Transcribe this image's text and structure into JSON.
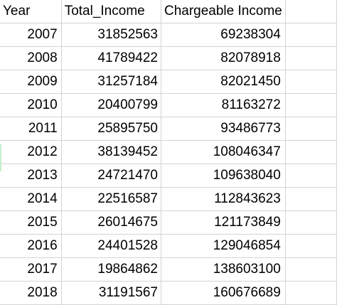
{
  "columns": {
    "year": "Year",
    "total_income": "Total_Income",
    "chargeable_income": "Chargeable Income"
  },
  "rows": [
    {
      "year": "2007",
      "total_income": "31852563",
      "chargeable_income": "69238304"
    },
    {
      "year": "2008",
      "total_income": "41789422",
      "chargeable_income": "82078918"
    },
    {
      "year": "2009",
      "total_income": "31257184",
      "chargeable_income": "82021450"
    },
    {
      "year": "2010",
      "total_income": "20400799",
      "chargeable_income": "81163272"
    },
    {
      "year": "2011",
      "total_income": "25895750",
      "chargeable_income": "93486773"
    },
    {
      "year": "2012",
      "total_income": "38139452",
      "chargeable_income": "108046347"
    },
    {
      "year": "2013",
      "total_income": "24721470",
      "chargeable_income": "109638040"
    },
    {
      "year": "2014",
      "total_income": "22516587",
      "chargeable_income": "112843623"
    },
    {
      "year": "2015",
      "total_income": "26014675",
      "chargeable_income": "121173849"
    },
    {
      "year": "2016",
      "total_income": "24401528",
      "chargeable_income": "129046854"
    },
    {
      "year": "2017",
      "total_income": "19864862",
      "chargeable_income": "138603100"
    },
    {
      "year": "2018",
      "total_income": "31191567",
      "chargeable_income": "160676689"
    }
  ]
}
